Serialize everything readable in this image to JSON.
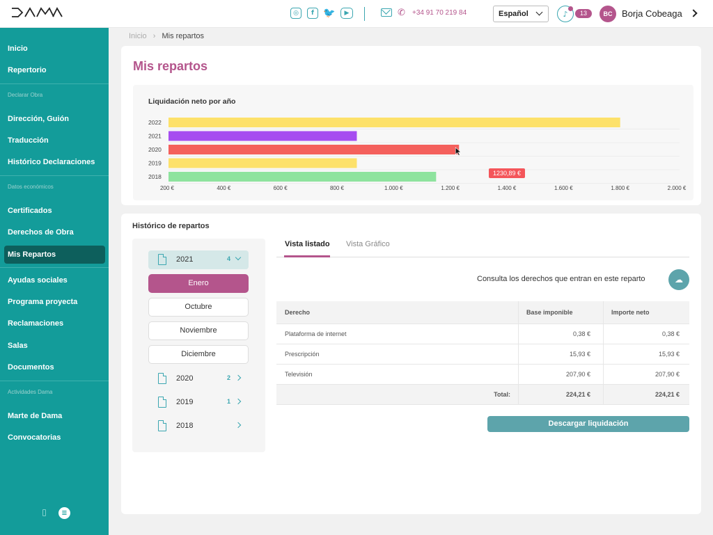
{
  "header": {
    "logo": "DAMA",
    "social_icons": [
      "instagram-icon",
      "facebook-icon",
      "twitter-icon",
      "youtube-icon"
    ],
    "phone": "+34 91 70 219 84",
    "language": "Español",
    "notifications_count": "13",
    "user_initials": "BC",
    "user_name": "Borja Cobeaga"
  },
  "sidebar": {
    "items": [
      {
        "label": "Inicio"
      },
      {
        "label": "Repertorio"
      },
      {
        "label": "Dirección, Guión"
      },
      {
        "label": "Traducción"
      },
      {
        "label": "Histórico Declaraciones"
      },
      {
        "label": "Certificados"
      },
      {
        "label": "Derechos de Obra"
      },
      {
        "label": "Mis Repartos"
      },
      {
        "label": "Ayudas sociales"
      },
      {
        "label": "Programa proyecta"
      },
      {
        "label": "Reclamaciones"
      },
      {
        "label": "Salas"
      },
      {
        "label": "Documentos"
      },
      {
        "label": "Marte de Dama"
      },
      {
        "label": "Convocatorias"
      }
    ],
    "sections": [
      "Declarar Obra",
      "Datos económicos",
      "Actividades Dama"
    ],
    "active": "Mis Repartos"
  },
  "breadcrumb": {
    "home": "Inicio",
    "current": "Mis repartos"
  },
  "page_title": "Mis repartos",
  "chart_data": {
    "type": "bar",
    "orientation": "horizontal",
    "title": "Liquidación neto por año",
    "categories": [
      "2022",
      "2021",
      "2020",
      "2019",
      "2018"
    ],
    "values": [
      1800,
      870,
      1230.89,
      870,
      1150
    ],
    "colors": [
      "#fde16a",
      "#a64df0",
      "#f4605c",
      "#fde16a",
      "#8ee39e"
    ],
    "xlim": [
      200,
      2000
    ],
    "x_ticks": [
      "200 €",
      "400 €",
      "600 €",
      "800 €",
      "1.000 €",
      "1.200 €",
      "1.400 €",
      "1.600 €",
      "1.800 €",
      "2.000 €"
    ],
    "tooltip": "1230,89 €"
  },
  "historico": {
    "title": "Histórico de repartos",
    "years": [
      {
        "year": "2021",
        "count": "4",
        "open": true
      },
      {
        "year": "2020",
        "count": "2"
      },
      {
        "year": "2019",
        "count": "1"
      },
      {
        "year": "2018",
        "count": ""
      }
    ],
    "months": [
      "Enero",
      "Octubre",
      "Noviembre",
      "Diciembre"
    ],
    "selected_month": "Enero"
  },
  "tabs": [
    {
      "label": "Vista listado",
      "active": true
    },
    {
      "label": "Vista Gráfico"
    }
  ],
  "consult_text": "Consulta los derechos que entran en este reparto",
  "table": {
    "headers": [
      "Derecho",
      "Base imponible",
      "Importe neto"
    ],
    "rows": [
      [
        "Plataforma de internet",
        "0,38 €",
        "0,38 €"
      ],
      [
        "Prescripción",
        "15,93 €",
        "15,93 €"
      ],
      [
        "Televisión",
        "207,90 €",
        "207,90 €"
      ]
    ],
    "total": [
      "Total:",
      "224,21 €",
      "224,21 €"
    ]
  },
  "download_label": "Descargar liquidación"
}
